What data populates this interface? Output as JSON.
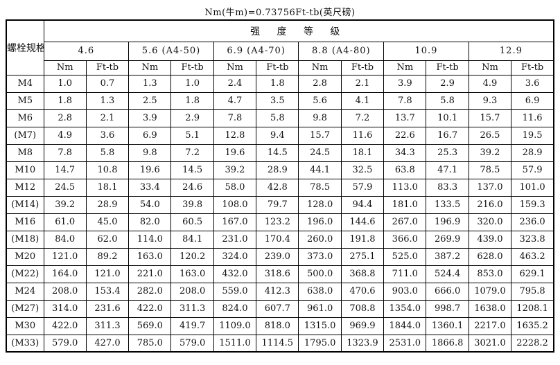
{
  "title": "Nm(牛m)=0.73756Ft-tb(英尺磅)",
  "table": {
    "spec_header": "螺栓规格",
    "strength_header": "强 度 等 级",
    "groups": [
      "4.6",
      "5.6 (A4-50)",
      "6.9 (A4-70)",
      "8.8 (A4-80)",
      "10.9",
      "12.9"
    ],
    "unit_headers": [
      "Nm",
      "Ft-tb"
    ],
    "rows": [
      {
        "spec": "M4",
        "values": [
          "1.0",
          "0.7",
          "1.3",
          "1.0",
          "2.4",
          "1.8",
          "2.8",
          "2.1",
          "3.9",
          "2.9",
          "4.9",
          "3.6"
        ]
      },
      {
        "spec": "M5",
        "values": [
          "1.8",
          "1.3",
          "2.5",
          "1.8",
          "4.7",
          "3.5",
          "5.6",
          "4.1",
          "7.8",
          "5.8",
          "9.3",
          "6.9"
        ]
      },
      {
        "spec": "M6",
        "values": [
          "2.8",
          "2.1",
          "3.9",
          "2.9",
          "7.8",
          "5.8",
          "9.8",
          "7.2",
          "13.7",
          "10.1",
          "15.7",
          "11.6"
        ]
      },
      {
        "spec": "(M7)",
        "values": [
          "4.9",
          "3.6",
          "6.9",
          "5.1",
          "12.8",
          "9.4",
          "15.7",
          "11.6",
          "22.6",
          "16.7",
          "26.5",
          "19.5"
        ]
      },
      {
        "spec": "M8",
        "values": [
          "7.8",
          "5.8",
          "9.8",
          "7.2",
          "19.6",
          "14.5",
          "24.5",
          "18.1",
          "34.3",
          "25.3",
          "39.2",
          "28.9"
        ]
      },
      {
        "spec": "M10",
        "values": [
          "14.7",
          "10.8",
          "19.6",
          "14.5",
          "39.2",
          "28.9",
          "44.1",
          "32.5",
          "63.8",
          "47.1",
          "78.5",
          "57.9"
        ]
      },
      {
        "spec": "M12",
        "values": [
          "24.5",
          "18.1",
          "33.4",
          "24.6",
          "58.0",
          "42.8",
          "78.5",
          "57.9",
          "113.0",
          "83.3",
          "137.0",
          "101.0"
        ]
      },
      {
        "spec": "(M14)",
        "values": [
          "39.2",
          "28.9",
          "54.0",
          "39.8",
          "108.0",
          "79.7",
          "128.0",
          "94.4",
          "181.0",
          "133.5",
          "216.0",
          "159.3"
        ]
      },
      {
        "spec": "M16",
        "values": [
          "61.0",
          "45.0",
          "82.0",
          "60.5",
          "167.0",
          "123.2",
          "196.0",
          "144.6",
          "267.0",
          "196.9",
          "320.0",
          "236.0"
        ]
      },
      {
        "spec": "(M18)",
        "values": [
          "84.0",
          "62.0",
          "114.0",
          "84.1",
          "231.0",
          "170.4",
          "260.0",
          "191.8",
          "366.0",
          "269.9",
          "439.0",
          "323.8"
        ]
      },
      {
        "spec": "M20",
        "values": [
          "121.0",
          "89.2",
          "163.0",
          "120.2",
          "324.0",
          "239.0",
          "373.0",
          "275.1",
          "525.0",
          "387.2",
          "628.0",
          "463.2"
        ]
      },
      {
        "spec": "(M22)",
        "values": [
          "164.0",
          "121.0",
          "221.0",
          "163.0",
          "432.0",
          "318.6",
          "500.0",
          "368.8",
          "711.0",
          "524.4",
          "853.0",
          "629.1"
        ]
      },
      {
        "spec": "M24",
        "values": [
          "208.0",
          "153.4",
          "282.0",
          "208.0",
          "559.0",
          "412.3",
          "638.0",
          "470.6",
          "903.0",
          "666.0",
          "1079.0",
          "795.8"
        ]
      },
      {
        "spec": "(M27)",
        "values": [
          "314.0",
          "231.6",
          "422.0",
          "311.3",
          "824.0",
          "607.7",
          "961.0",
          "708.8",
          "1354.0",
          "998.7",
          "1638.0",
          "1208.1"
        ]
      },
      {
        "spec": "M30",
        "values": [
          "422.0",
          "311.3",
          "569.0",
          "419.7",
          "1109.0",
          "818.0",
          "1315.0",
          "969.9",
          "1844.0",
          "1360.1",
          "2217.0",
          "1635.2"
        ]
      },
      {
        "spec": "(M33)",
        "values": [
          "579.0",
          "427.0",
          "785.0",
          "579.0",
          "1511.0",
          "1114.5",
          "1795.0",
          "1323.9",
          "2531.0",
          "1866.8",
          "3021.0",
          "2228.2"
        ]
      }
    ]
  }
}
